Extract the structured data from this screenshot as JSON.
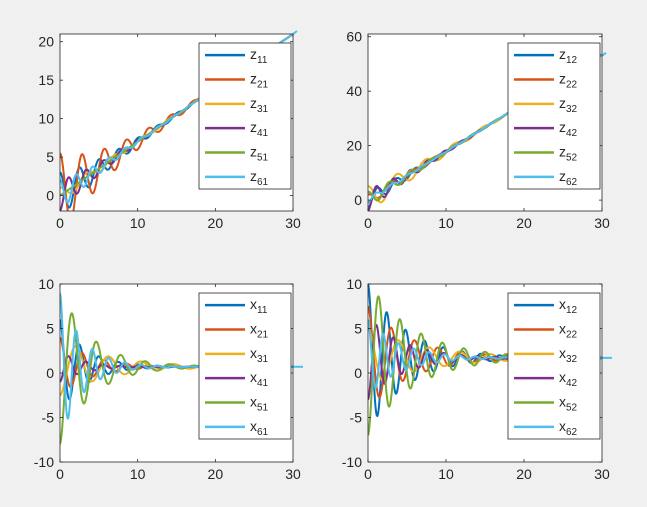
{
  "figure": {
    "background": "#f0f0f0"
  },
  "colors": [
    "#0072BD",
    "#D95319",
    "#EDB120",
    "#7E2F8E",
    "#77AC30",
    "#4DBEEE"
  ],
  "chart_data": [
    {
      "type": "line",
      "xlim": [
        0,
        30
      ],
      "ylim": [
        -2,
        21
      ],
      "xticks": [
        "0",
        "10",
        "20",
        "30"
      ],
      "yticks": [
        "0",
        "5",
        "10",
        "15",
        "20"
      ],
      "legend_position": "top-right",
      "legend": [
        {
          "base": "z",
          "sub": "11"
        },
        {
          "base": "z",
          "sub": "21"
        },
        {
          "base": "z",
          "sub": "31"
        },
        {
          "base": "z",
          "sub": "41"
        },
        {
          "base": "z",
          "sub": "51"
        },
        {
          "base": "z",
          "sub": "61"
        }
      ],
      "trend": {
        "slope": 0.7,
        "end": 21
      },
      "series": [
        {
          "y0": 3.0,
          "amp": 3.0,
          "omega": 2.5,
          "decay": 0.18
        },
        {
          "y0": 5.5,
          "amp": 3.0,
          "omega": 2.2,
          "decay": 0.17
        },
        {
          "y0": 1.0,
          "amp": 3.0,
          "omega": 1.8,
          "decay": 0.14
        },
        {
          "y0": -2.0,
          "amp": 3.0,
          "omega": 2.8,
          "decay": 0.2
        },
        {
          "y0": 0.0,
          "amp": 3.0,
          "omega": 2.0,
          "decay": 0.15
        },
        {
          "y0": 2.0,
          "amp": 3.0,
          "omega": 3.0,
          "decay": 0.21
        }
      ]
    },
    {
      "type": "line",
      "xlim": [
        0,
        30
      ],
      "ylim": [
        -4,
        61
      ],
      "xticks": [
        "0",
        "10",
        "20",
        "30"
      ],
      "yticks": [
        "0",
        "20",
        "40",
        "60"
      ],
      "legend_position": "top-right",
      "legend": [
        {
          "base": "z",
          "sub": "12"
        },
        {
          "base": "z",
          "sub": "22"
        },
        {
          "base": "z",
          "sub": "32"
        },
        {
          "base": "z",
          "sub": "42"
        },
        {
          "base": "z",
          "sub": "52"
        },
        {
          "base": "z",
          "sub": "62"
        }
      ],
      "trend": {
        "slope": 1.78,
        "end": 53
      },
      "series": [
        {
          "y0": -3.0,
          "amp": 5.0,
          "omega": 2.6,
          "decay": 0.18
        },
        {
          "y0": 2.0,
          "amp": 5.0,
          "omega": 2.1,
          "decay": 0.16
        },
        {
          "y0": 5.0,
          "amp": 5.0,
          "omega": 1.7,
          "decay": 0.14
        },
        {
          "y0": -4.0,
          "amp": 5.0,
          "omega": 2.9,
          "decay": 0.19
        },
        {
          "y0": 3.0,
          "amp": 5.0,
          "omega": 2.3,
          "decay": 0.17
        },
        {
          "y0": -1.0,
          "amp": 5.0,
          "omega": 3.1,
          "decay": 0.2
        }
      ]
    },
    {
      "type": "line",
      "xlim": [
        0,
        30
      ],
      "ylim": [
        -10,
        10
      ],
      "xticks": [
        "0",
        "10",
        "20",
        "30"
      ],
      "yticks": [
        "-10",
        "-5",
        "0",
        "5",
        "10"
      ],
      "legend_position": "top-right",
      "legend": [
        {
          "base": "x",
          "sub": "11"
        },
        {
          "base": "x",
          "sub": "21"
        },
        {
          "base": "x",
          "sub": "31"
        },
        {
          "base": "x",
          "sub": "41"
        },
        {
          "base": "x",
          "sub": "51"
        },
        {
          "base": "x",
          "sub": "61"
        }
      ],
      "final": 0.7,
      "series": [
        {
          "y0": 6.0,
          "omega": 2.5,
          "decay": 0.3
        },
        {
          "y0": 4.0,
          "omega": 2.2,
          "decay": 0.26
        },
        {
          "y0": -2.5,
          "omega": 1.5,
          "decay": 0.16
        },
        {
          "y0": -1.0,
          "omega": 2.8,
          "decay": 0.32
        },
        {
          "y0": -8.0,
          "omega": 2.0,
          "decay": 0.24
        },
        {
          "y0": 9.0,
          "omega": 3.0,
          "decay": 0.34
        }
      ]
    },
    {
      "type": "line",
      "xlim": [
        0,
        30
      ],
      "ylim": [
        -10,
        10
      ],
      "xticks": [
        "0",
        "10",
        "20",
        "30"
      ],
      "yticks": [
        "-10",
        "-5",
        "0",
        "5",
        "10"
      ],
      "legend_position": "top-right",
      "legend": [
        {
          "base": "x",
          "sub": "12"
        },
        {
          "base": "x",
          "sub": "22"
        },
        {
          "base": "x",
          "sub": "32"
        },
        {
          "base": "x",
          "sub": "42"
        },
        {
          "base": "x",
          "sub": "52"
        },
        {
          "base": "x",
          "sub": "62"
        }
      ],
      "final": 1.7,
      "series": [
        {
          "y0": 10.0,
          "omega": 2.6,
          "decay": 0.2
        },
        {
          "y0": 7.5,
          "omega": 2.1,
          "decay": 0.18
        },
        {
          "y0": 5.0,
          "omega": 1.6,
          "decay": 0.13
        },
        {
          "y0": -3.0,
          "omega": 2.9,
          "decay": 0.22
        },
        {
          "y0": -7.0,
          "omega": 2.3,
          "decay": 0.17
        },
        {
          "y0": 6.0,
          "omega": 3.2,
          "decay": 0.24
        }
      ]
    }
  ]
}
